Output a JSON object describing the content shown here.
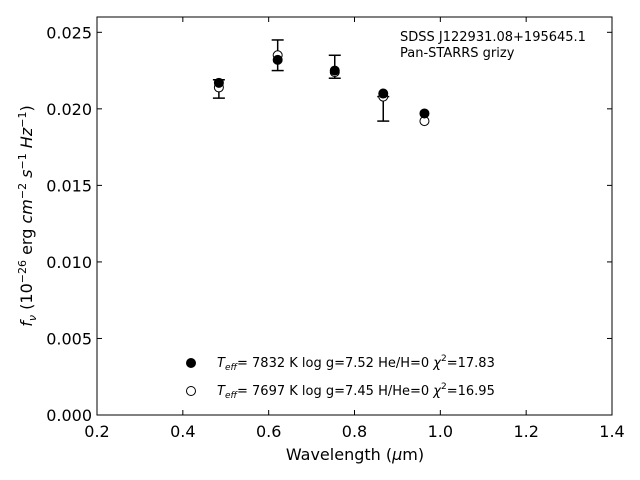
{
  "chart_data": {
    "type": "scatter",
    "title": "",
    "xlabel": {
      "base": "Wavelength (",
      "mu": "μ",
      "tail": "m)"
    },
    "ylabel": {
      "f": "f",
      "nu": "ν",
      "open": " (10",
      "exp1": "−26",
      "erg": " erg ",
      "cm": "cm",
      "exp2": "−2",
      "s": " s",
      "exp3": "−1",
      "hz": " Hz",
      "exp4": "−1",
      "close": ")"
    },
    "xlim": [
      0.2,
      1.4
    ],
    "ylim": [
      0.0,
      0.026
    ],
    "x_ticks": [
      0.2,
      0.4,
      0.6,
      0.8,
      1.0,
      1.2,
      1.4
    ],
    "x_tick_labels": [
      "0.2",
      "0.4",
      "0.6",
      "0.8",
      "1.0",
      "1.2",
      "1.4"
    ],
    "y_ticks": [
      0.0,
      0.005,
      0.01,
      0.015,
      0.02,
      0.025
    ],
    "y_tick_labels": [
      "0.000",
      "0.005",
      "0.010",
      "0.015",
      "0.020",
      "0.025"
    ],
    "grid": false,
    "annotation": [
      "SDSS J122931.08+195645.1",
      "Pan-STARRS grizy"
    ],
    "observed": {
      "x": [
        0.484,
        0.621,
        0.754,
        0.867,
        0.963
      ],
      "y": [
        0.0214,
        0.0235,
        0.0228,
        0.0208,
        0.0192
      ],
      "err_low": [
        0.0007,
        0.001,
        0.0008,
        0.0016,
        0.0
      ],
      "err_high": [
        0.0005,
        0.001,
        0.0007,
        0.0,
        0.0
      ]
    },
    "series": [
      {
        "marker": "filled-circle",
        "x": [
          0.484,
          0.621,
          0.754,
          0.867,
          0.963
        ],
        "y": [
          0.0217,
          0.0232,
          0.0225,
          0.021,
          0.0197
        ]
      },
      {
        "marker": "open-circle",
        "x": [
          0.484,
          0.621,
          0.754,
          0.867,
          0.963
        ],
        "y": [
          0.0214,
          0.0235,
          0.0224,
          0.0208,
          0.0192
        ]
      }
    ],
    "legend": [
      {
        "marker": "filled-circle",
        "T": "T",
        "eff": "eff",
        "rest": "=  7832 K  log g=7.52  He/H=0  ",
        "chi": "χ",
        "two": "2",
        "chi_val": "=17.83"
      },
      {
        "marker": "open-circle",
        "T": "T",
        "eff": "eff",
        "rest": "=  7697 K  log g=7.45  H/He=0  ",
        "chi": "χ",
        "two": "2",
        "chi_val": "=16.95"
      }
    ],
    "legend_placement": "bottom-center"
  }
}
